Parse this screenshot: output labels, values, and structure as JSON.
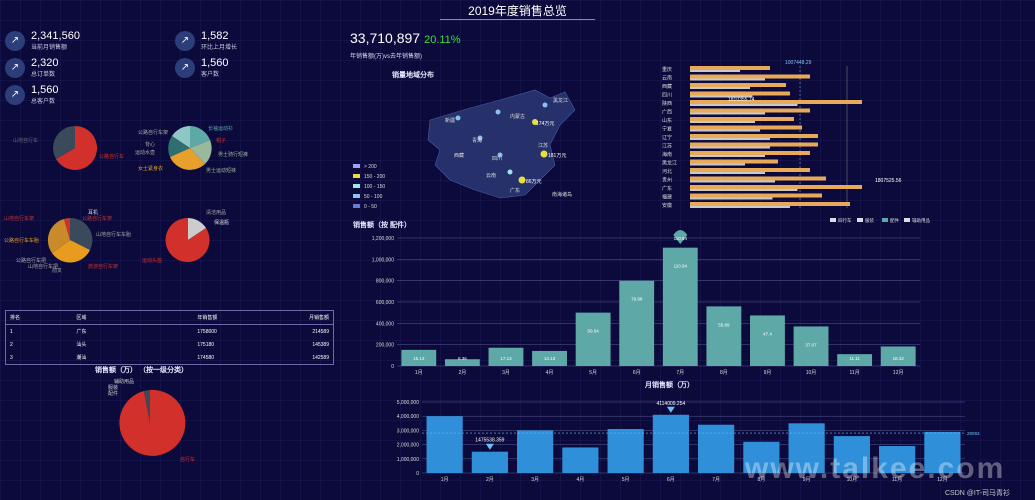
{
  "header": {
    "title": "2019年度销售总览"
  },
  "kpis": [
    {
      "value": "2,341,560",
      "label": "当前月销售额"
    },
    {
      "value": "1,582",
      "label": "环比上月增长"
    },
    {
      "value": "2,320",
      "label": "总订单数"
    },
    {
      "value": "1,560",
      "label": "客户数"
    },
    {
      "value": "1,560",
      "label": "总客户数"
    }
  ],
  "summary": {
    "total": "33,710,897",
    "growth": "20.11%",
    "caption": "年销售额(万)vs去年销售额)"
  },
  "map": {
    "title": "销量地域分布",
    "legend": [
      "> 200",
      "150 - 200",
      "100 - 150",
      "50 - 100",
      "0 - 50"
    ],
    "callouts": [
      "174万元",
      "181万元",
      "86万元"
    ],
    "provinces": [
      "黑龙江",
      "新疆",
      "内蒙古",
      "青海",
      "西藏",
      "四川",
      "云南",
      "广东",
      "江苏",
      "南海诸岛"
    ]
  },
  "colors": {
    "accent": "#3fa7d6",
    "red": "#d2302b",
    "orange": "#e8a958",
    "teal": "#5fa8a8",
    "blue": "#2f8fd8"
  },
  "hbar": {
    "ticks_top": "1007448.29",
    "peak_label": "1807525.56",
    "peak2_label": "1810355.74",
    "legend": [
      "四行车",
      "服装",
      "配件",
      "辅助用品"
    ],
    "provinces": [
      "重庆",
      "云南",
      "西藏",
      "四川",
      "陕西",
      "广西",
      "山东",
      "宁夏",
      "辽宁",
      "江苏",
      "海南",
      "黑龙江",
      "河北",
      "贵州",
      "广东",
      "福建",
      "安徽"
    ]
  },
  "pies": {
    "p1": {
      "labels": [
        "公路自行车",
        "山地自行车"
      ]
    },
    "p2": {
      "labels": [
        "长袖运动衫",
        "公路自行车架",
        "帽子",
        "背心",
        "男士骑行短裤",
        "女士紧身衣",
        "男士运动短袜",
        "运动水壶"
      ]
    },
    "p3": {
      "labels": [
        "耳机",
        "公路自行车架",
        "山地自行车架",
        "山地自行车车胎",
        "公路自行车车胎",
        "旅游自行车架",
        "公路自行车把",
        "山地自行车把",
        "前叉"
      ]
    },
    "p4": {
      "labels": [
        "清洁用品",
        "保温瓶",
        "运动头盔"
      ]
    },
    "p5": {
      "title": "销售额（万） （按一级分类）",
      "labels": [
        "辅助用品",
        "服装",
        "配件",
        "自行车"
      ]
    }
  },
  "rank": {
    "headers": [
      "排名",
      "区域",
      "年销售额",
      "月销售额"
    ],
    "rows": [
      [
        "1",
        "广东",
        "1758000",
        "214589"
      ],
      [
        "2",
        "汕头",
        "175180",
        "145389"
      ],
      [
        "3",
        "潮汕",
        "174580",
        "142589"
      ]
    ]
  },
  "chart_data": [
    {
      "type": "bar",
      "title": "销售额（按 配件）",
      "categories": [
        "1月",
        "2月",
        "3月",
        "4月",
        "5月",
        "6月",
        "7月",
        "8月",
        "9月",
        "10月",
        "11月",
        "12月"
      ],
      "values": [
        15.13,
        6.36,
        17.13,
        14.13,
        50.04,
        79.98,
        110.94,
        55.89,
        47.4,
        37.07,
        11.11,
        18.32
      ],
      "yticks": [
        "0",
        "200,000",
        "400,000",
        "600,000",
        "800,000",
        "1,000,000",
        "1,200,000"
      ],
      "ylim": [
        0,
        1200000
      ],
      "peak_label": "110.94"
    },
    {
      "type": "bar",
      "title": "月销售额（万）",
      "categories": [
        "1月",
        "2月",
        "3月",
        "4月",
        "5月",
        "6月",
        "7月",
        "8月",
        "9月",
        "10月",
        "11月",
        "12月"
      ],
      "values": [
        4000000,
        1500000,
        3000000,
        1800000,
        3100000,
        4100000,
        3400000,
        2200000,
        3500000,
        2600000,
        1900000,
        2900000
      ],
      "yticks": [
        "0",
        "1,000,000",
        "2,000,000",
        "3,000,000",
        "4,000,000",
        "5,000,000"
      ],
      "ylim": [
        0,
        5000000
      ],
      "max_label": "4114009.254",
      "min_label": "1475538.359",
      "avg_label": "2809241.41"
    }
  ],
  "watermark": "www.talkee.com",
  "credit": "CSDN @IT-司马青衫"
}
